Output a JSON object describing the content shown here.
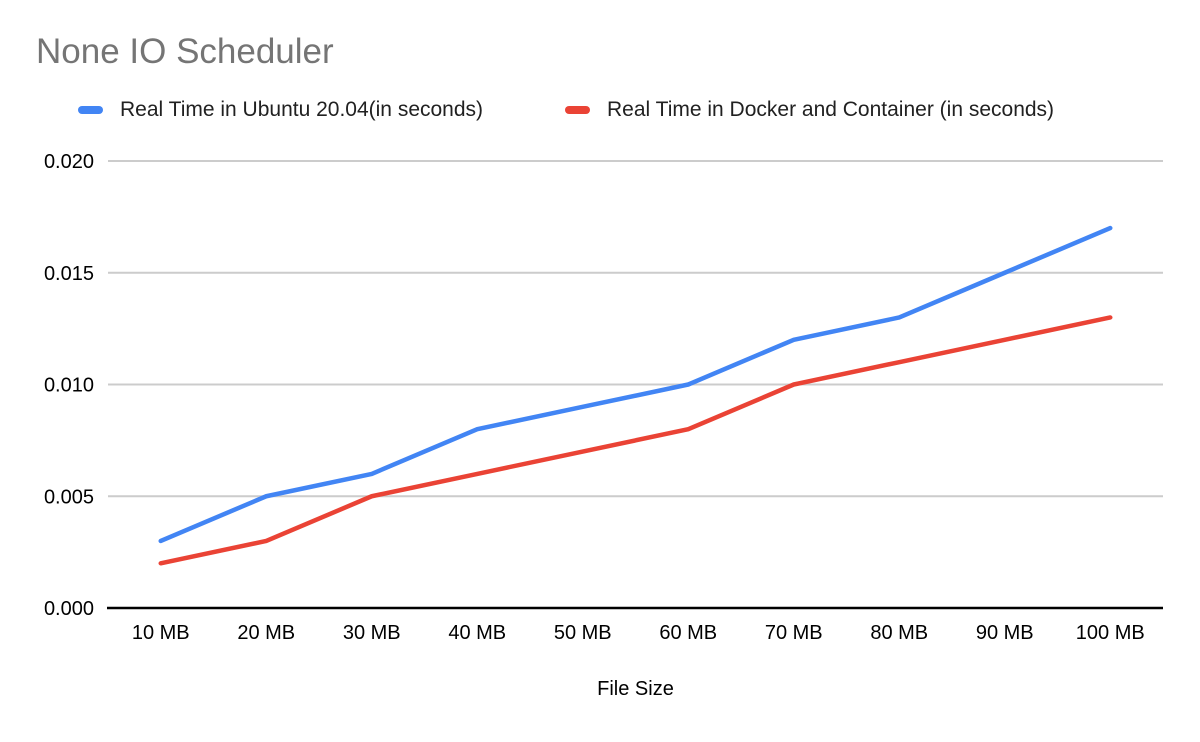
{
  "chart_data": {
    "type": "line",
    "title": "None IO Scheduler",
    "xlabel": "File Size",
    "ylabel": "",
    "categories": [
      "10 MB",
      "20 MB",
      "30 MB",
      "40 MB",
      "50 MB",
      "60 MB",
      "70 MB",
      "80 MB",
      "90 MB",
      "100 MB"
    ],
    "series": [
      {
        "name": "Real Time in Ubuntu 20.04(in seconds)",
        "color": "#4285F4",
        "values": [
          0.003,
          0.005,
          0.006,
          0.008,
          0.009,
          0.01,
          0.012,
          0.013,
          0.015,
          0.017
        ]
      },
      {
        "name": "Real Time in Docker and Container (in seconds)",
        "color": "#EA4335",
        "values": [
          0.002,
          0.003,
          0.005,
          0.006,
          0.007,
          0.008,
          0.01,
          0.011,
          0.012,
          0.013
        ]
      }
    ],
    "ylim": [
      0,
      0.02
    ],
    "yticks": [
      0.0,
      0.005,
      0.01,
      0.015,
      0.02
    ],
    "ytick_decimals": 3,
    "grid": true,
    "legend_position": "top",
    "colors": {
      "title": "#757575",
      "gridline": "#cccccc",
      "axis_line": "#000000",
      "tick_label": "#000000"
    }
  }
}
